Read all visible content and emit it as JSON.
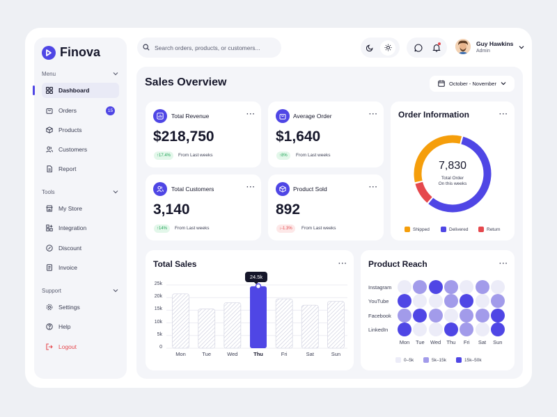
{
  "brand": {
    "name": "Finova"
  },
  "sidebar": {
    "sections": [
      {
        "label": "Menu",
        "items": [
          {
            "label": "Dashboard",
            "icon": "grid-icon",
            "active": true
          },
          {
            "label": "Orders",
            "icon": "bag-icon",
            "badge": "15"
          },
          {
            "label": "Products",
            "icon": "box-icon"
          },
          {
            "label": "Customers",
            "icon": "users-icon"
          },
          {
            "label": "Report",
            "icon": "document-icon"
          }
        ]
      },
      {
        "label": "Tools",
        "items": [
          {
            "label": "My Store",
            "icon": "store-icon"
          },
          {
            "label": "Integration",
            "icon": "apps-icon"
          },
          {
            "label": "Discount",
            "icon": "discount-icon"
          },
          {
            "label": "Invoice",
            "icon": "invoice-icon"
          }
        ]
      },
      {
        "label": "Support",
        "items": [
          {
            "label": "Settings",
            "icon": "gear-icon"
          },
          {
            "label": "Help",
            "icon": "help-icon"
          },
          {
            "label": "Logout",
            "icon": "logout-icon"
          }
        ]
      }
    ]
  },
  "header": {
    "search_placeholder": "Search orders, products, or customers...",
    "user": {
      "name": "Guy Hawkins",
      "role": "Admin"
    }
  },
  "overview": {
    "title": "Sales Overview",
    "date_range": "October - November"
  },
  "stats": [
    {
      "label": "Total Revenue",
      "value": "$218,750",
      "change": "17.4%",
      "direction": "up",
      "note": "From Last weeks",
      "icon": "chart-icon"
    },
    {
      "label": "Average Order",
      "value": "$1,640",
      "change": "8%",
      "direction": "up",
      "note": "From Last weeks",
      "icon": "bag-icon"
    },
    {
      "label": "Total Customers",
      "value": "3,140",
      "change": "14%",
      "direction": "up",
      "note": "From Last weeks",
      "icon": "users-icon"
    },
    {
      "label": "Product Sold",
      "value": "892",
      "change": "-1.3%",
      "direction": "down",
      "note": "From Last weeks",
      "icon": "box-icon"
    }
  ],
  "order_info": {
    "title": "Order Information",
    "total": "7,830",
    "sub1": "Total Order",
    "sub2": "On this weeks"
  },
  "total_sales": {
    "title": "Total Sales",
    "tooltip": "24.5k"
  },
  "product_reach": {
    "title": "Product Reach"
  },
  "colors": {
    "accent": "#4f46e5",
    "shipped": "#f59e0b",
    "delivered": "#4f46e5",
    "return": "#e5484d",
    "reach_low": "#ececf8",
    "reach_mid": "#a29bea",
    "reach_high": "#4f46e5"
  },
  "chart_data": [
    {
      "type": "pie",
      "title": "Order Information",
      "categories": [
        "Shipped",
        "Delivered",
        "Return"
      ],
      "values": [
        33,
        57,
        10
      ],
      "legend": "bottom"
    },
    {
      "type": "bar",
      "title": "Total Sales",
      "categories": [
        "Mon",
        "Tue",
        "Wed",
        "Thu",
        "Fri",
        "Sat",
        "Sun"
      ],
      "values": [
        21.5,
        15.5,
        18,
        24.5,
        19.5,
        17,
        18.5
      ],
      "y_ticks": [
        "0",
        "5k",
        "10k",
        "15k",
        "20k",
        "25k"
      ],
      "ylim": [
        0,
        25
      ],
      "highlight": "Thu",
      "grid": true
    },
    {
      "type": "heatmap",
      "title": "Product Reach",
      "rows": [
        "Instagram",
        "YouTube",
        "Facebook",
        "LinkedIn"
      ],
      "columns": [
        "Mon",
        "Tue",
        "Wed",
        "Thu",
        "Fri",
        "Sat",
        "Sun"
      ],
      "levels": [
        "0–5k",
        "5k–15k",
        "15k–50k"
      ],
      "values": [
        [
          0,
          1,
          2,
          1,
          0,
          1,
          0
        ],
        [
          2,
          0,
          0,
          1,
          2,
          0,
          1
        ],
        [
          1,
          2,
          1,
          0,
          1,
          1,
          2
        ],
        [
          2,
          0,
          0,
          2,
          1,
          0,
          2
        ]
      ],
      "legend": "bottom"
    }
  ]
}
